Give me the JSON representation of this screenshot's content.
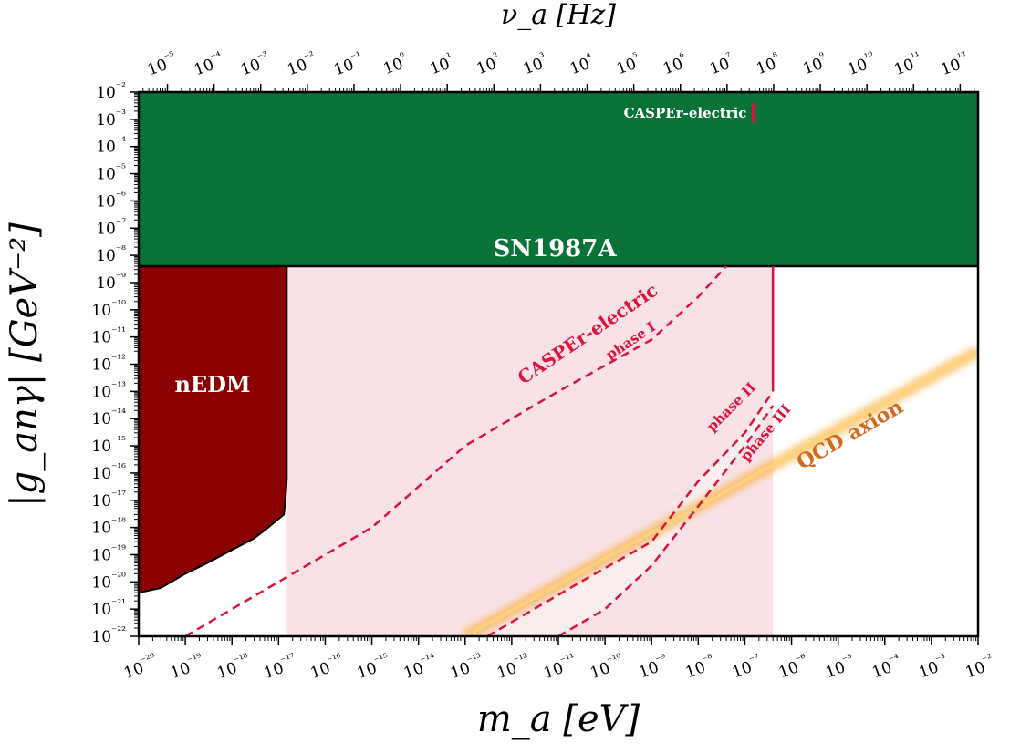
{
  "chart_data": {
    "type": "area",
    "xlabel": "m_a [eV]",
    "ylabel": "|g_anγ| [GeV⁻²]",
    "top_xlabel": "ν_a [Hz]",
    "x_scale": "log",
    "y_scale": "log",
    "xlim": [
      1e-20,
      0.01
    ],
    "ylim": [
      1e-22,
      0.01
    ],
    "x_ticks": [
      "10⁻²⁰",
      "10⁻¹⁹",
      "10⁻¹⁸",
      "10⁻¹⁷",
      "10⁻¹⁶",
      "10⁻¹⁵",
      "10⁻¹⁴",
      "10⁻¹³",
      "10⁻¹²",
      "10⁻¹¹",
      "10⁻¹⁰",
      "10⁻⁹",
      "10⁻⁸",
      "10⁻⁷",
      "10⁻⁶",
      "10⁻⁵",
      "10⁻⁴",
      "10⁻³",
      "10⁻²"
    ],
    "y_ticks": [
      "10⁻²²",
      "10⁻²¹",
      "10⁻²⁰",
      "10⁻¹⁹",
      "10⁻¹⁸",
      "10⁻¹⁷",
      "10⁻¹⁶",
      "10⁻¹⁵",
      "10⁻¹⁴",
      "10⁻¹³",
      "10⁻¹²",
      "10⁻¹¹",
      "10⁻¹⁰",
      "10⁻⁹",
      "10⁻⁸",
      "10⁻⁷",
      "10⁻⁶",
      "10⁻⁵",
      "10⁻⁴",
      "10⁻³",
      "10⁻²"
    ],
    "top_ticks_hz": [
      "10⁻⁵",
      "10⁻⁴",
      "10⁻³",
      "10⁻²",
      "10⁻¹",
      "10⁰",
      "10¹",
      "10²",
      "10³",
      "10⁴",
      "10⁵",
      "10⁶",
      "10⁷",
      "10⁸",
      "10⁹",
      "10¹⁰",
      "10¹¹",
      "10¹²"
    ],
    "hz_per_ev": 241800000000000.0,
    "regions": [
      {
        "label": "SN1987A",
        "color": "#097237",
        "x_range": [
          1e-20,
          0.01
        ],
        "y_range": [
          4e-09,
          0.01
        ]
      },
      {
        "label": "nEDM",
        "color": "#8b0000",
        "boundary": [
          [
            1e-20,
            4e-21
          ],
          [
            3e-20,
            6e-21
          ],
          [
            1e-19,
            2e-20
          ],
          [
            3e-19,
            5e-20
          ],
          [
            1e-18,
            1.5e-19
          ],
          [
            3e-18,
            4e-19
          ],
          [
            6e-18,
            1e-18
          ],
          [
            1.3e-17,
            3e-18
          ],
          [
            1.4e-17,
            1e-17
          ],
          [
            1.5e-17,
            6e-17
          ],
          [
            1.5e-17,
            4e-09
          ]
        ]
      },
      {
        "label": "CASPEr-electric",
        "color": "#f7d8df",
        "x_range": [
          1.5e-17,
          4e-07
        ],
        "y_range": [
          1e-22,
          4e-09
        ]
      }
    ],
    "series": [
      {
        "name": "phase I",
        "style": "dashed",
        "color": "#dc143c",
        "points": [
          [
            1e-19,
            1e-22
          ],
          [
            1e-15,
            1e-18
          ],
          [
            1e-13,
            1e-15
          ],
          [
            1e-11,
            1e-13
          ],
          [
            1e-09,
            8e-12
          ],
          [
            1e-08,
            3e-10
          ],
          [
            4e-08,
            4e-09
          ]
        ]
      },
      {
        "name": "phase II",
        "style": "dashed",
        "color": "#dc143c",
        "points": [
          [
            3e-13,
            1e-22
          ],
          [
            3e-11,
            1e-20
          ],
          [
            1e-09,
            3e-19
          ],
          [
            1e-08,
            5e-17
          ],
          [
            1e-07,
            3e-15
          ],
          [
            4e-07,
            1e-13
          ]
        ]
      },
      {
        "name": "phase III",
        "style": "dashed",
        "color": "#dc143c",
        "points": [
          [
            1e-11,
            1e-22
          ],
          [
            1e-10,
            1e-21
          ],
          [
            1e-09,
            4e-20
          ],
          [
            1e-08,
            6e-18
          ],
          [
            1e-07,
            1e-15
          ],
          [
            4e-07,
            3e-14
          ]
        ]
      },
      {
        "name": "QCD axion",
        "style": "band",
        "color": "#f5a623",
        "points": [
          [
            1e-13,
            1e-22
          ],
          [
            0.01,
            3e-12
          ]
        ]
      }
    ],
    "annotations": [
      {
        "text": "SN1987A",
        "color": "#ffffff"
      },
      {
        "text": "nEDM",
        "color": "#ffffff"
      },
      {
        "text": "CASPEr-electric",
        "color": "#dc143c"
      },
      {
        "text": "phase I",
        "color": "#dc143c"
      },
      {
        "text": "phase II",
        "color": "#dc143c"
      },
      {
        "text": "phase III",
        "color": "#dc143c"
      },
      {
        "text": "QCD axion",
        "color": "#d2691e"
      },
      {
        "text": "CASPEr-electric",
        "color": "#ffffff"
      }
    ]
  }
}
